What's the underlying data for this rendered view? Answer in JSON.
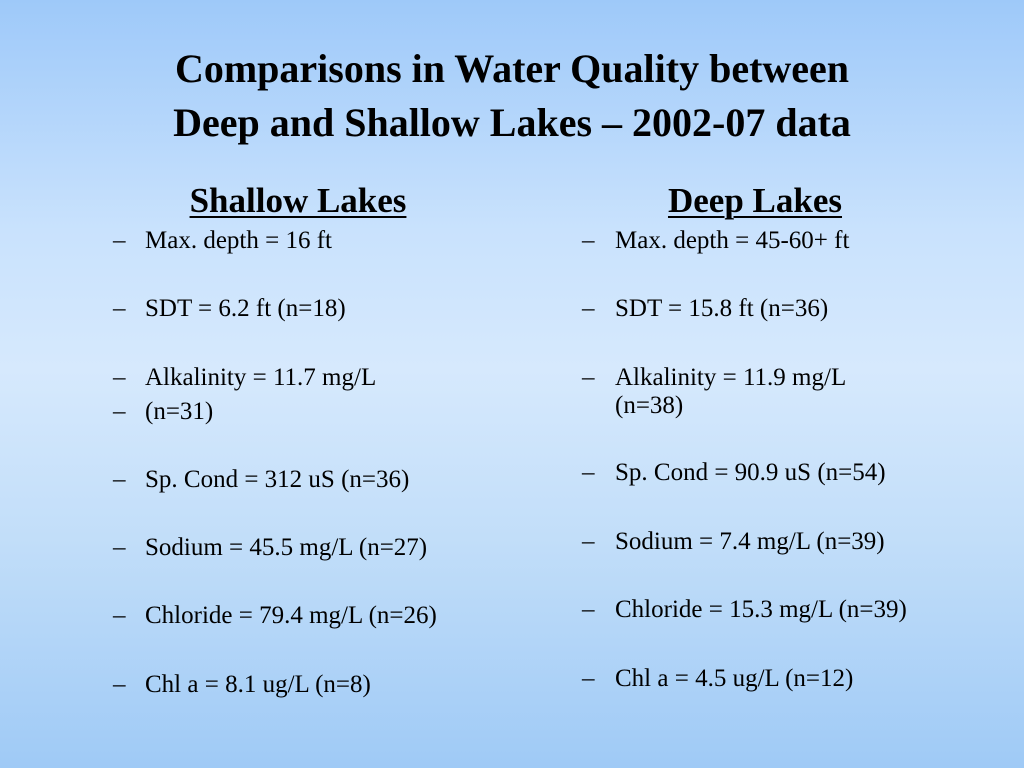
{
  "slide": {
    "title_line1": "Comparisons in Water Quality between",
    "title_line2": "Deep and Shallow Lakes – 2002-07 data",
    "dash": "–"
  },
  "shallow": {
    "heading": "Shallow Lakes",
    "items": [
      "Max. depth = 16 ft",
      "SDT = 6.2 ft (n=18)",
      "Alkalinity = 11.7 mg/L",
      "(n=31)",
      "Sp. Cond = 312 uS (n=36)",
      "Sodium = 45.5 mg/L (n=27)",
      "Chloride = 79.4 mg/L (n=26)",
      "Chl a =  8.1 ug/L (n=8)"
    ]
  },
  "deep": {
    "heading": "Deep Lakes",
    "items": [
      "Max. depth = 45-60+ ft",
      "SDT = 15.8 ft (n=36)",
      "Alkalinity = 11.9 mg/L",
      "(n=38)",
      "Sp. Cond = 90.9  uS (n=54)",
      "Sodium = 7.4 mg/L (n=39)",
      "Chloride = 15.3 mg/L (n=39)",
      "Chl a =  4.5 ug/L (n=12)"
    ]
  }
}
